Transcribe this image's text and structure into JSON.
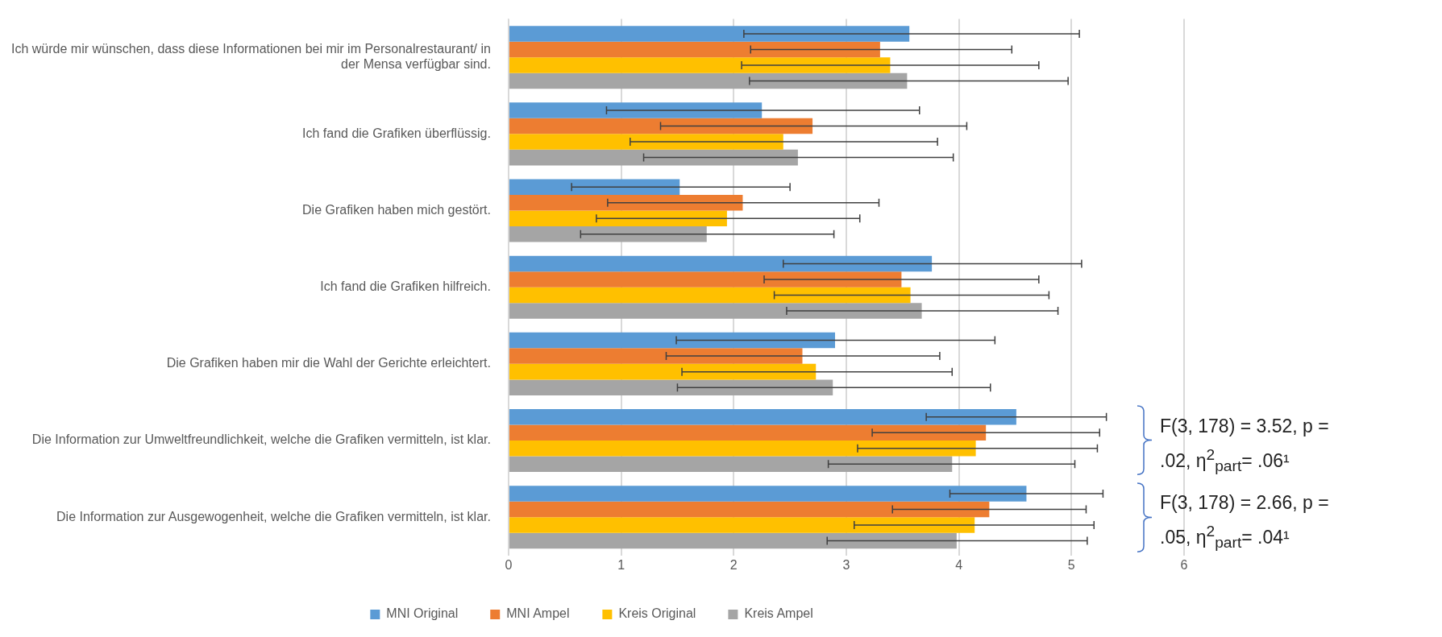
{
  "chart_data": {
    "type": "bar",
    "orientation": "horizontal",
    "categories": [
      "Ich würde mir wünschen, dass diese Informationen bei mir im Personalrestaurant/ in der Mensa verfügbar sind.",
      "Ich fand die Grafiken überflüssig.",
      "Die Grafiken haben mich gestört.",
      "Ich fand die Grafiken hilfreich.",
      "Die Grafiken haben mir die Wahl der Gerichte erleichtert.",
      "Die Information zur Umweltfreundlichkeit, welche die Grafiken vermitteln, ist klar.",
      "Die Information zur Ausgewogenheit, welche die Grafiken vermitteln, ist klar."
    ],
    "series": [
      {
        "name": "MNI Original",
        "color": "#5b9bd5",
        "values": [
          3.56,
          2.25,
          1.52,
          3.76,
          2.9,
          4.51,
          4.6
        ],
        "errors": [
          [
            2.09,
            5.07
          ],
          [
            0.87,
            3.65
          ],
          [
            0.56,
            2.5
          ],
          [
            2.44,
            5.09
          ],
          [
            1.49,
            4.32
          ],
          [
            3.71,
            5.31
          ],
          [
            3.92,
            5.28
          ]
        ]
      },
      {
        "name": "MNI Ampel",
        "color": "#ed7d31",
        "values": [
          3.3,
          2.7,
          2.08,
          3.49,
          2.61,
          4.24,
          4.27
        ],
        "errors": [
          [
            2.15,
            4.47
          ],
          [
            1.35,
            4.07
          ],
          [
            0.88,
            3.29
          ],
          [
            2.27,
            4.71
          ],
          [
            1.4,
            3.83
          ],
          [
            3.23,
            5.25
          ],
          [
            3.41,
            5.13
          ]
        ]
      },
      {
        "name": "Kreis Original",
        "color": "#ffc000",
        "values": [
          3.39,
          2.44,
          1.94,
          3.57,
          2.73,
          4.15,
          4.14
        ],
        "errors": [
          [
            2.07,
            4.71
          ],
          [
            1.08,
            3.81
          ],
          [
            0.78,
            3.12
          ],
          [
            2.36,
            4.8
          ],
          [
            1.54,
            3.94
          ],
          [
            3.1,
            5.23
          ],
          [
            3.07,
            5.2
          ]
        ]
      },
      {
        "name": "Kreis Ampel",
        "color": "#a5a5a5",
        "values": [
          3.54,
          2.57,
          1.76,
          3.67,
          2.88,
          3.94,
          3.98
        ],
        "errors": [
          [
            2.14,
            4.97
          ],
          [
            1.2,
            3.95
          ],
          [
            0.64,
            2.89
          ],
          [
            2.47,
            4.88
          ],
          [
            1.5,
            4.28
          ],
          [
            2.84,
            5.03
          ],
          [
            2.83,
            5.14
          ]
        ]
      }
    ],
    "xlim": [
      0,
      6
    ],
    "xticks": [
      0,
      1,
      2,
      3,
      4,
      5,
      6
    ],
    "grid": "x",
    "legend": "bottom",
    "annotations": [
      "F(3, 178) = 3.52, p = .02, η$^{2}$$_{part}$= .06¹",
      "F(3, 178) = 2.66, p = .05, η$^{2}$$_{part}$= .04¹"
    ]
  }
}
